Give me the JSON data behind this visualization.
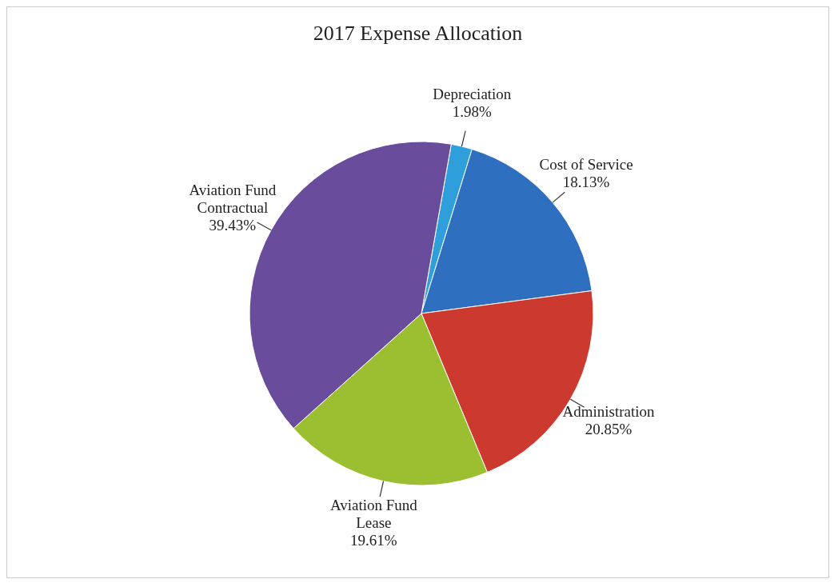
{
  "chart_data": {
    "type": "pie",
    "title": "2017 Expense Allocation",
    "categories": [
      "Depreciation",
      "Cost of Service",
      "Administration",
      "Aviation Fund Lease",
      "Aviation Fund Contractual"
    ],
    "values": [
      1.98,
      18.13,
      20.85,
      19.61,
      39.43
    ],
    "value_labels": [
      "1.98%",
      "18.13%",
      "20.85%",
      "19.61%",
      "39.43%"
    ],
    "colors": [
      "#2e9fdb",
      "#2f6fc0",
      "#cc3a2f",
      "#9cbf32",
      "#6a4c9c"
    ],
    "legend": false
  }
}
